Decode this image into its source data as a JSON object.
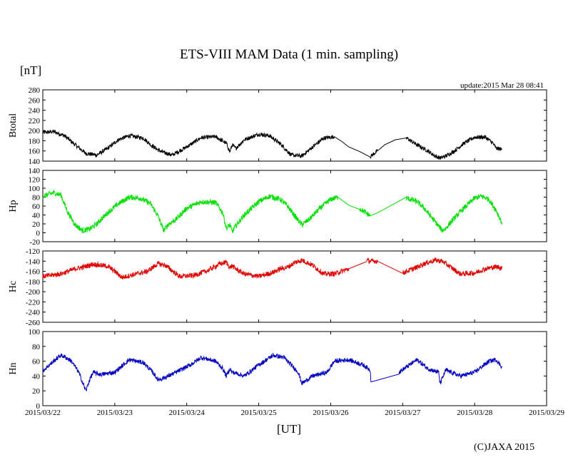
{
  "chart_data": {
    "type": "line",
    "title": "ETS-VIII MAM Data (1 min. sampling)",
    "unit_label": "[nT]",
    "update_text": "update:2015 Mar 28 08:41",
    "xlabel": "[UT]",
    "copyright": "(C)JAXA 2015",
    "x_range_days": [
      0,
      7
    ],
    "x_tick_labels": [
      "2015/03/22",
      "2015/03/23",
      "2015/03/24",
      "2015/03/25",
      "2015/03/26",
      "2015/03/27",
      "2015/03/28",
      "2015/03/29"
    ],
    "panels": [
      {
        "name": "Btotal",
        "ylabel": "Btotal",
        "color": "#000000",
        "ylim": [
          140,
          280
        ],
        "y_ticks": [
          140,
          160,
          180,
          200,
          220,
          240,
          260,
          280
        ],
        "noise": 4,
        "x": [
          0,
          0.15,
          0.3,
          0.45,
          0.6,
          0.75,
          0.9,
          1.05,
          1.2,
          1.4,
          1.5,
          1.6,
          1.68,
          1.8,
          2.0,
          2.2,
          2.4,
          2.55,
          2.6,
          2.63,
          2.68,
          2.8,
          3.0,
          3.15,
          3.3,
          3.45,
          3.6,
          3.75,
          3.9,
          4.05,
          4.15,
          4.25,
          4.4,
          4.55,
          4.65,
          4.75,
          4.9,
          5.05,
          5.2,
          5.35,
          5.45,
          5.52,
          5.6,
          5.7,
          5.85,
          6.0,
          6.15,
          6.25,
          6.3,
          6.38
        ],
        "y": [
          196,
          198,
          190,
          172,
          155,
          152,
          165,
          182,
          190,
          185,
          172,
          162,
          157,
          152,
          168,
          186,
          188,
          175,
          158,
          172,
          165,
          182,
          193,
          190,
          174,
          152,
          150,
          168,
          185,
          188,
          179,
          168,
          159,
          149,
          160,
          172,
          182,
          186,
          172,
          160,
          150,
          146,
          150,
          158,
          175,
          187,
          187,
          176,
          165,
          163
        ]
      },
      {
        "name": "Hp",
        "ylabel": "Hp",
        "color": "#00e000",
        "ylim": [
          -20,
          140
        ],
        "y_ticks": [
          -20,
          0,
          20,
          40,
          60,
          80,
          100,
          120,
          140
        ],
        "noise": 6,
        "x": [
          0,
          0.15,
          0.25,
          0.35,
          0.45,
          0.55,
          0.65,
          0.75,
          0.9,
          1.05,
          1.2,
          1.35,
          1.5,
          1.6,
          1.68,
          1.75,
          1.85,
          2.0,
          2.2,
          2.4,
          2.5,
          2.55,
          2.6,
          2.63,
          2.68,
          2.8,
          3.0,
          3.15,
          3.3,
          3.4,
          3.5,
          3.6,
          3.7,
          3.85,
          4.0,
          4.1,
          4.25,
          4.4,
          4.55,
          4.65,
          4.8,
          5.05,
          5.2,
          5.3,
          5.4,
          5.5,
          5.55,
          5.6,
          5.7,
          5.85,
          6.0,
          6.1,
          6.2,
          6.3,
          6.38
        ],
        "y": [
          82,
          90,
          85,
          45,
          18,
          5,
          8,
          20,
          45,
          65,
          80,
          78,
          65,
          38,
          5,
          20,
          30,
          55,
          70,
          68,
          45,
          10,
          18,
          2,
          15,
          40,
          70,
          82,
          75,
          60,
          38,
          18,
          30,
          55,
          75,
          80,
          62,
          55,
          38,
          45,
          58,
          78,
          70,
          55,
          35,
          15,
          5,
          10,
          30,
          55,
          78,
          82,
          75,
          50,
          22
        ]
      },
      {
        "name": "Hc",
        "ylabel": "Hc",
        "color": "#e00000",
        "ylim": [
          -260,
          -120
        ],
        "y_ticks": [
          -260,
          -240,
          -220,
          -200,
          -180,
          -160,
          -140,
          -120
        ],
        "noise": 5,
        "x": [
          0,
          0.1,
          0.25,
          0.35,
          0.45,
          0.55,
          0.7,
          0.9,
          1.0,
          1.1,
          1.3,
          1.45,
          1.55,
          1.6,
          1.7,
          1.9,
          2.1,
          2.3,
          2.45,
          2.55,
          2.6,
          2.63,
          2.68,
          2.8,
          3.0,
          3.2,
          3.3,
          3.4,
          3.5,
          3.6,
          3.75,
          3.9,
          4.05,
          4.25,
          4.5,
          4.55,
          4.65,
          5.0,
          5.2,
          5.3,
          5.45,
          5.55,
          5.65,
          5.8,
          6.0,
          6.15,
          6.3,
          6.38
        ],
        "y": [
          -170,
          -168,
          -165,
          -160,
          -155,
          -152,
          -146,
          -150,
          -160,
          -172,
          -165,
          -160,
          -150,
          -145,
          -148,
          -170,
          -168,
          -158,
          -146,
          -142,
          -153,
          -149,
          -155,
          -165,
          -170,
          -162,
          -155,
          -152,
          -143,
          -138,
          -148,
          -165,
          -165,
          -155,
          -138,
          -140,
          -140,
          -163,
          -152,
          -145,
          -138,
          -140,
          -150,
          -165,
          -163,
          -155,
          -151,
          -153
        ]
      },
      {
        "name": "Hn",
        "ylabel": "Hn",
        "color": "#0000c0",
        "ylim": [
          0,
          100
        ],
        "y_ticks": [
          0,
          20,
          40,
          60,
          80,
          100
        ],
        "noise": 3,
        "x": [
          0,
          0.15,
          0.25,
          0.32,
          0.4,
          0.5,
          0.55,
          0.6,
          0.65,
          0.7,
          0.8,
          1.0,
          1.2,
          1.4,
          1.5,
          1.55,
          1.6,
          1.7,
          1.85,
          2.05,
          2.2,
          2.4,
          2.5,
          2.55,
          2.6,
          2.63,
          2.68,
          2.8,
          3.0,
          3.2,
          3.35,
          3.55,
          3.6,
          3.75,
          3.95,
          4.05,
          4.25,
          4.45,
          4.55,
          4.56,
          4.95,
          5.05,
          5.2,
          5.35,
          5.5,
          5.52,
          5.6,
          5.8,
          6.0,
          6.2,
          6.3,
          6.38
        ],
        "y": [
          47,
          60,
          68,
          65,
          60,
          45,
          32,
          20,
          35,
          45,
          42,
          45,
          62,
          58,
          48,
          42,
          35,
          38,
          45,
          55,
          65,
          60,
          50,
          40,
          50,
          45,
          44,
          40,
          55,
          68,
          65,
          45,
          30,
          40,
          45,
          60,
          62,
          55,
          48,
          32,
          45,
          52,
          62,
          50,
          45,
          30,
          48,
          40,
          45,
          60,
          62,
          52
        ]
      }
    ]
  }
}
